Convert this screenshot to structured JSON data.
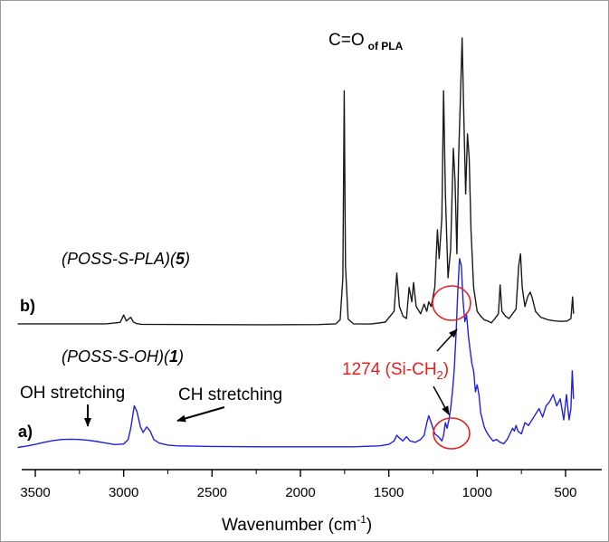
{
  "chart_data": {
    "type": "line",
    "title": "",
    "xlabel": "Wavenumber (cm",
    "xlabel_sup": "-1",
    "xlabel_close": ")",
    "ylabel": "",
    "xlim": [
      3600,
      450
    ],
    "x_reversed": true,
    "grid": false,
    "legend": "none",
    "x_ticks": [
      3500,
      3000,
      2500,
      2000,
      1500,
      1000,
      500
    ],
    "x_tick_labels": [
      "3500",
      "3000",
      "2500",
      "2000",
      "1500",
      "1000",
      "500"
    ],
    "series": [
      {
        "tag": "b)",
        "label_main": "(POSS-S-PLA)(",
        "label_bold": "5",
        "label_close": ")",
        "color": "#1a1a1a",
        "baseline": 0,
        "x": [
          3600,
          3100,
          3020,
          3000,
          2985,
          2960,
          2945,
          2930,
          2900,
          2600,
          2200,
          1900,
          1800,
          1775,
          1760,
          1752,
          1745,
          1730,
          1700,
          1600,
          1520,
          1470,
          1455,
          1440,
          1420,
          1400,
          1385,
          1370,
          1360,
          1345,
          1320,
          1300,
          1285,
          1274,
          1260,
          1240,
          1225,
          1215,
          1200,
          1190,
          1180,
          1165,
          1150,
          1135,
          1125,
          1115,
          1105,
          1095,
          1085,
          1075,
          1065,
          1055,
          1045,
          1035,
          1020,
          1000,
          980,
          960,
          940,
          920,
          900,
          880,
          870,
          860,
          840,
          820,
          800,
          780,
          765,
          755,
          745,
          730,
          715,
          700,
          690,
          670,
          640,
          600,
          560,
          520,
          490,
          470,
          460,
          455
        ],
        "y": [
          0.8,
          0.8,
          1.4,
          4.5,
          2.0,
          3.5,
          1.6,
          1.0,
          0.6,
          0.5,
          0.4,
          0.5,
          0.8,
          2.5,
          20,
          98,
          25,
          2.8,
          0.8,
          0.7,
          1.5,
          6,
          22,
          8,
          4,
          3,
          16,
          10,
          18,
          8,
          5,
          9,
          6,
          10,
          8,
          16,
          40,
          28,
          45,
          98,
          55,
          20,
          32,
          74,
          60,
          30,
          70,
          95,
          120,
          85,
          55,
          80,
          70,
          40,
          16,
          6,
          4,
          2.5,
          2,
          1.2,
          3,
          5,
          17,
          6,
          4,
          3,
          5,
          7,
          25,
          30,
          16,
          8,
          12,
          14,
          12,
          6,
          3.5,
          2.5,
          2,
          1.8,
          2,
          3,
          12,
          5
        ]
      },
      {
        "tag": "a)",
        "label_main": "(POSS-S-OH)(",
        "label_bold": "1",
        "label_close": ")",
        "color": "#2020dd",
        "baseline": 0,
        "x": [
          3600,
          3550,
          3500,
          3450,
          3400,
          3350,
          3300,
          3250,
          3200,
          3150,
          3100,
          3050,
          3000,
          2975,
          2960,
          2940,
          2925,
          2905,
          2890,
          2870,
          2850,
          2830,
          2800,
          2750,
          2700,
          2500,
          2200,
          1900,
          1700,
          1550,
          1500,
          1470,
          1455,
          1440,
          1420,
          1400,
          1380,
          1350,
          1320,
          1300,
          1285,
          1274,
          1260,
          1240,
          1220,
          1200,
          1190,
          1180,
          1170,
          1160,
          1150,
          1140,
          1130,
          1120,
          1110,
          1100,
          1090,
          1080,
          1070,
          1060,
          1050,
          1040,
          1030,
          1020,
          1010,
          1000,
          990,
          980,
          970,
          960,
          950,
          930,
          910,
          890,
          870,
          850,
          830,
          815,
          800,
          790,
          780,
          770,
          750,
          730,
          710,
          690,
          670,
          650,
          630,
          610,
          590,
          570,
          550,
          530,
          510,
          495,
          480,
          470,
          462,
          455
        ],
        "y": [
          0.3,
          1.2,
          2.5,
          4.0,
          5.2,
          6.0,
          6.2,
          6.0,
          5.4,
          4.5,
          3.4,
          2.4,
          2.8,
          6,
          14,
          30,
          26,
          15,
          11,
          15,
          12,
          6,
          3.5,
          2,
          1.5,
          1,
          0.8,
          0.8,
          0.8,
          1.5,
          2.5,
          5,
          9,
          7,
          5,
          8,
          5,
          4,
          6,
          9,
          18,
          23,
          18,
          10,
          8,
          5,
          9,
          18,
          14,
          20,
          28,
          40,
          55,
          80,
          110,
          135,
          130,
          105,
          90,
          95,
          80,
          70,
          60,
          55,
          40,
          45,
          38,
          25,
          20,
          15,
          12,
          8,
          5,
          6,
          4,
          3,
          6,
          10,
          14,
          12,
          16,
          12,
          10,
          18,
          16,
          20,
          24,
          28,
          22,
          30,
          33,
          38,
          30,
          35,
          20,
          38,
          20,
          28,
          55,
          35
        ]
      }
    ],
    "annotations": {
      "carbonyl_main": "C=O",
      "carbonyl_sub": "of PLA",
      "si_ch2_main": "1274 (Si-CH",
      "si_ch2_sub": "2",
      "si_ch2_close": ")",
      "oh_stretch": "OH stretching",
      "ch_stretch": "CH stretching"
    },
    "colors": {
      "highlight_circle": "#e32222",
      "axis": "#000000"
    }
  }
}
